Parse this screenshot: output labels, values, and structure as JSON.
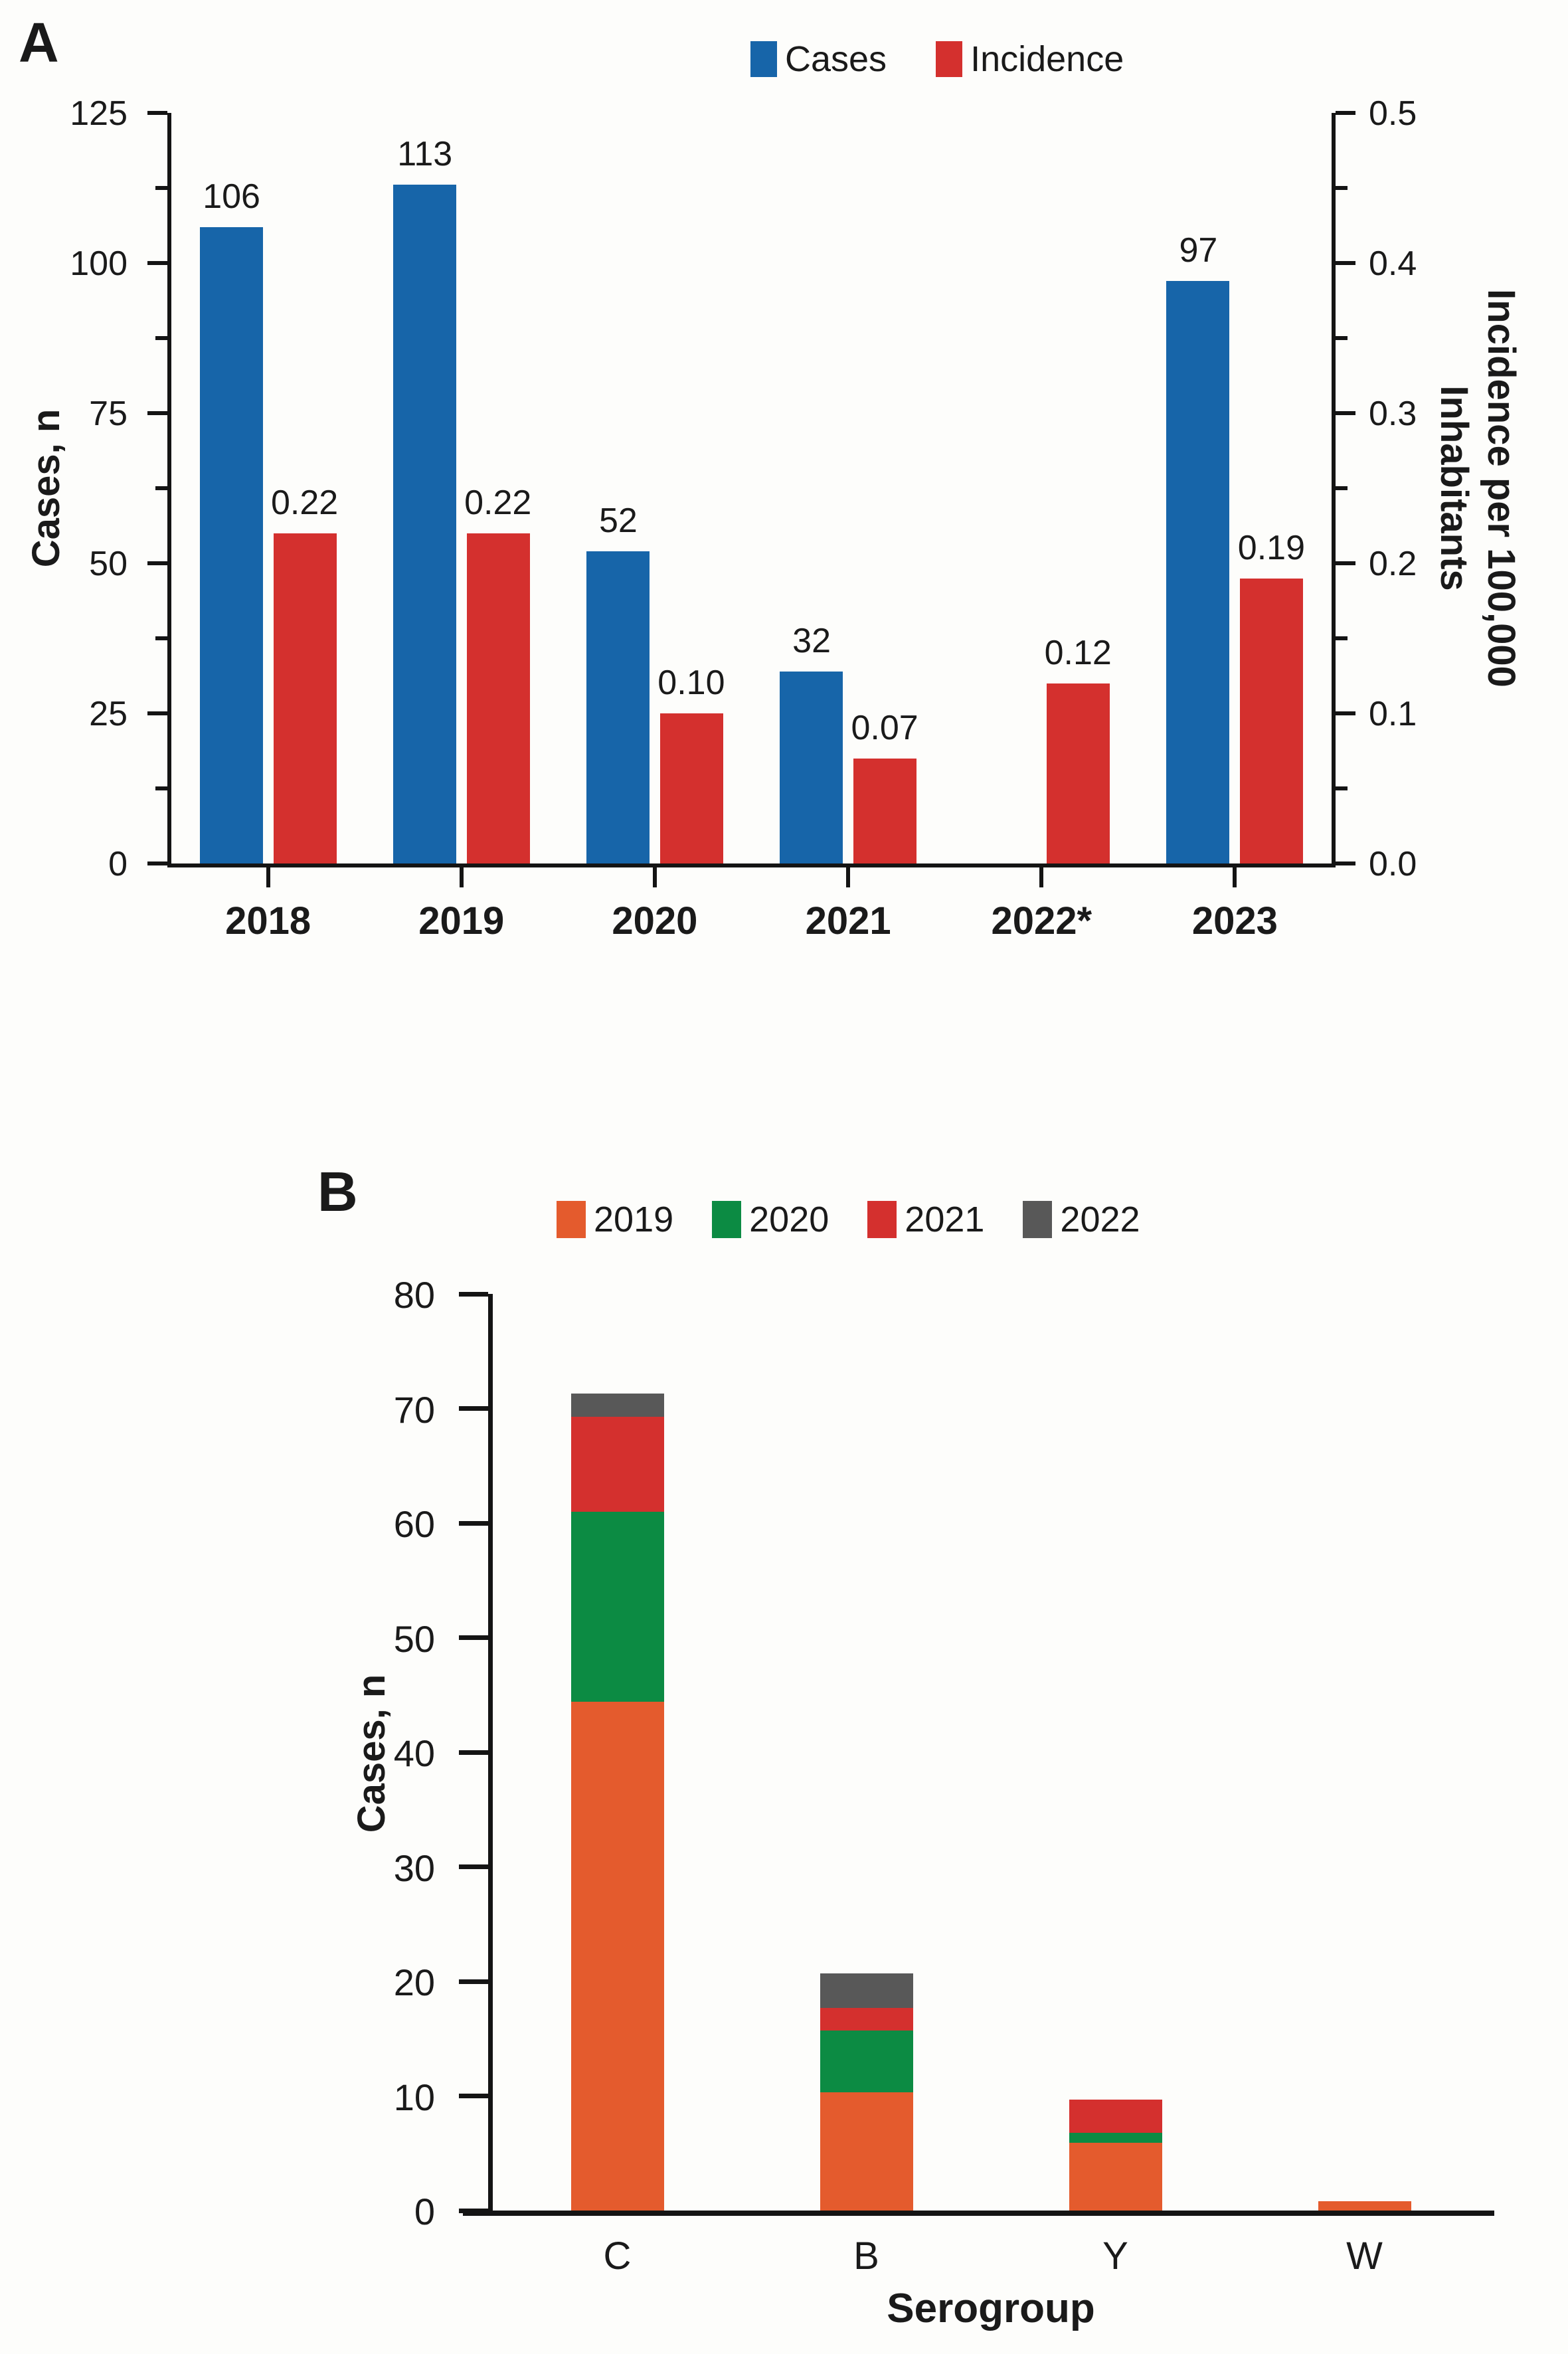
{
  "panels": {
    "a": {
      "panel_label": "A"
    },
    "b": {
      "panel_label": "B"
    }
  },
  "chart_data": [
    {
      "id": "panel-a",
      "panel_label": "A",
      "type": "bar",
      "categories": [
        "2018",
        "2019",
        "2020",
        "2021",
        "2022*",
        "2023"
      ],
      "series": [
        {
          "name": "Cases",
          "color": "#1765A9",
          "axis": "left",
          "values": [
            106,
            113,
            52,
            32,
            null,
            97
          ],
          "labels": [
            "106",
            "113",
            "52",
            "32",
            "",
            "97"
          ]
        },
        {
          "name": "Incidence",
          "color": "#D4302E",
          "axis": "right",
          "values": [
            0.22,
            0.22,
            0.1,
            0.07,
            0.12,
            0.19
          ],
          "labels": [
            "0.22",
            "0.22",
            "0.10",
            "0.07",
            "0.12",
            "0.19"
          ]
        }
      ],
      "left_axis": {
        "label": "Cases, n",
        "min": 0,
        "max": 125,
        "ticks": [
          "0",
          "25",
          "50",
          "75",
          "100",
          "125"
        ],
        "minor_between": true
      },
      "right_axis": {
        "label_line1": "Incidence per 100,000",
        "label_line2": "Inhabitants",
        "min": 0,
        "max": 0.5,
        "ticks": [
          "0.0",
          "0.1",
          "0.2",
          "0.3",
          "0.4",
          "0.5"
        ],
        "minor_between": true
      },
      "legend": [
        "Cases",
        "Incidence"
      ],
      "grid": "off",
      "legend_position": "top-center"
    },
    {
      "id": "panel-b",
      "panel_label": "B",
      "type": "stacked-bar",
      "categories": [
        "C",
        "B",
        "Y",
        "W"
      ],
      "series": [
        {
          "name": "2019",
          "color": "#E45B2D",
          "values": [
            44.4,
            10.3,
            5.9,
            0.8
          ]
        },
        {
          "name": "2020",
          "color": "#0C8B43",
          "values": [
            16.6,
            5.4,
            0.9,
            0
          ]
        },
        {
          "name": "2021",
          "color": "#D4302E",
          "values": [
            8.3,
            2.0,
            2.9,
            0
          ]
        },
        {
          "name": "2022",
          "color": "#585858",
          "values": [
            2.0,
            3.0,
            0,
            0
          ]
        }
      ],
      "y_axis": {
        "label": "Cases, n",
        "min": 0,
        "max": 80,
        "ticks": [
          "0",
          "10",
          "20",
          "30",
          "40",
          "50",
          "60",
          "70",
          "80"
        ]
      },
      "x_axis": {
        "label": "Serogroup"
      },
      "legend": [
        "2019",
        "2020",
        "2021",
        "2022"
      ],
      "grid": "off",
      "legend_position": "top-center"
    }
  ]
}
